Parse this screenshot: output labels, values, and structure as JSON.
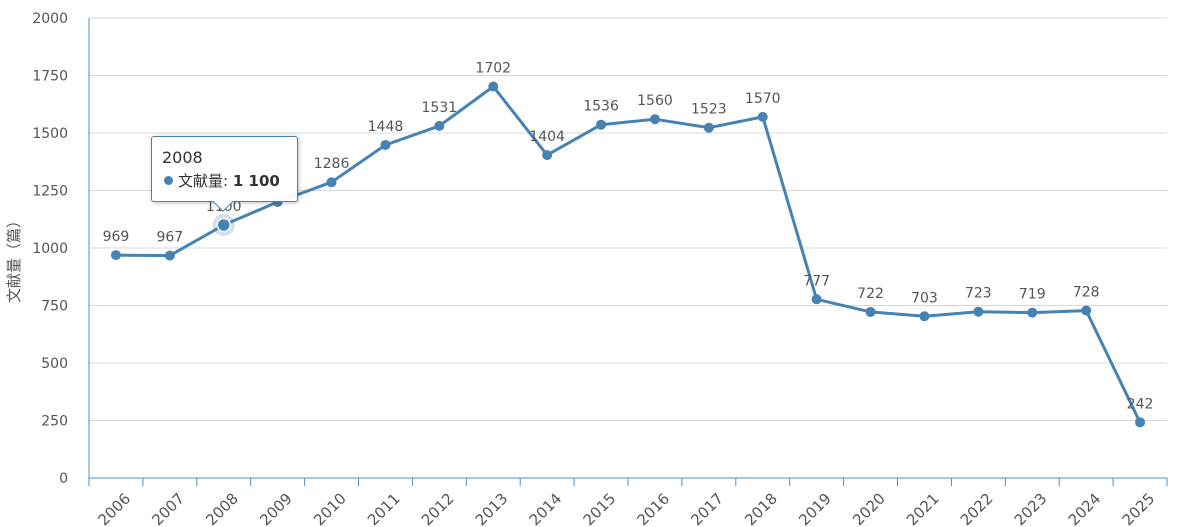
{
  "chart_data": {
    "type": "line",
    "title": "",
    "xlabel": "",
    "ylabel": "文献量（篇）",
    "ylim": [
      0,
      2000
    ],
    "yticks": [
      0,
      250,
      500,
      750,
      1000,
      1250,
      1500,
      1750,
      2000
    ],
    "grid": true,
    "categories": [
      "2006",
      "2007",
      "2008",
      "2009",
      "2010",
      "2011",
      "2012",
      "2013",
      "2014",
      "2015",
      "2016",
      "2017",
      "2018",
      "2019",
      "2020",
      "2021",
      "2022",
      "2023",
      "2024",
      "2025"
    ],
    "series": [
      {
        "name": "文献量",
        "color": "#4682b4",
        "values": [
          969,
          967,
          1100,
          1200,
          1286,
          1448,
          1531,
          1702,
          1404,
          1536,
          1560,
          1523,
          1570,
          777,
          722,
          703,
          723,
          719,
          728,
          242
        ],
        "data_labels": [
          "969",
          "967",
          "1100",
          "",
          "1286",
          "1448",
          "1531",
          "1702",
          "1404",
          "1536",
          "1560",
          "1523",
          "1570",
          "777",
          "722",
          "703",
          "723",
          "719",
          "728",
          "242"
        ]
      }
    ],
    "highlighted_index": 2
  },
  "tooltip": {
    "year": "2008",
    "series_name": "文献量",
    "separator": ": ",
    "value": "1 100"
  }
}
